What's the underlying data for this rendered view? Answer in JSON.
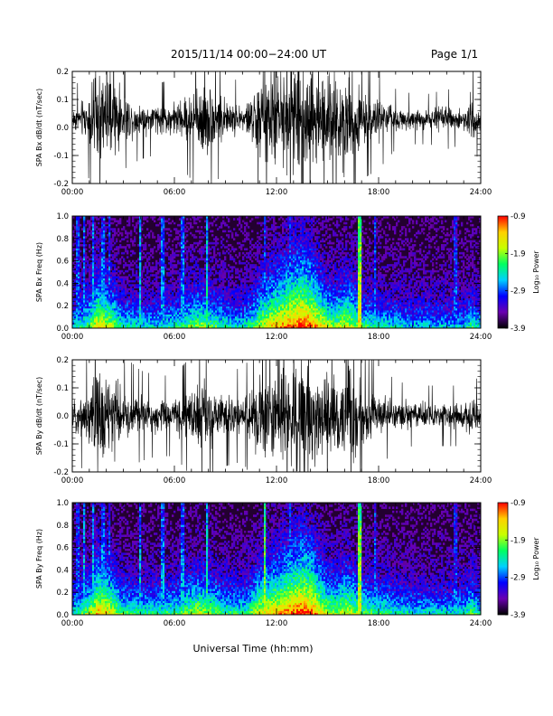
{
  "header": {
    "title": "2015/11/14  00:00−24:00 UT",
    "page": "Page 1/1"
  },
  "colors": {
    "trace": "#000000",
    "spectrogram_background": "#230030",
    "colorbar_stops": [
      "#000000",
      "#6a00b0",
      "#0000ff",
      "#00d0ff",
      "#00ff60",
      "#c8ff00",
      "#ffd000",
      "#ff0000"
    ]
  },
  "chart_data": [
    {
      "type": "line",
      "name": "bx-timeseries",
      "ylabel": "SPA Bx dB/dt (nT/sec)",
      "xlabel": "",
      "xlim": [
        0,
        24
      ],
      "ylim": [
        -0.2,
        0.2
      ],
      "x_ticks": [
        "00:00",
        "06:00",
        "12:00",
        "18:00",
        "24:00"
      ],
      "y_ticks": [
        "-0.2",
        "-0.1",
        "0.0",
        "0.1",
        "0.2"
      ],
      "y_tick_values": [
        -0.2,
        -0.1,
        0.0,
        0.1,
        0.2
      ],
      "baseline": 0.03,
      "envelope_hours": [
        0,
        1,
        1.5,
        2,
        2.5,
        3,
        4,
        5,
        6,
        7,
        7.5,
        8,
        9,
        10,
        10.5,
        11,
        12,
        12.5,
        13,
        13.5,
        14,
        15,
        15.5,
        16,
        16.5,
        17,
        18,
        19,
        20,
        21,
        22,
        23,
        23.5,
        24
      ],
      "envelope_amplitude": [
        0.05,
        0.12,
        0.25,
        0.22,
        0.2,
        0.1,
        0.08,
        0.07,
        0.08,
        0.12,
        0.2,
        0.16,
        0.09,
        0.07,
        0.11,
        0.2,
        0.24,
        0.25,
        0.28,
        0.3,
        0.3,
        0.18,
        0.2,
        0.26,
        0.25,
        0.12,
        0.1,
        0.06,
        0.05,
        0.05,
        0.06,
        0.05,
        0.12,
        0.04
      ]
    },
    {
      "type": "heatmap",
      "name": "bx-spectrogram",
      "ylabel": "SPA Bx Freq (Hz)",
      "xlabel": "",
      "xlim": [
        0,
        24
      ],
      "ylim": [
        0,
        1.0
      ],
      "x_ticks": [
        "00:00",
        "06:00",
        "12:00",
        "18:00",
        "24:00"
      ],
      "y_ticks": [
        "0.0",
        "0.2",
        "0.4",
        "0.6",
        "0.8",
        "1.0"
      ],
      "y_tick_values": [
        0.0,
        0.2,
        0.4,
        0.6,
        0.8,
        1.0
      ],
      "colorbar": {
        "min": -3.9,
        "max": -0.9,
        "ticks": [
          "-0.9",
          "-1.9",
          "-2.9",
          "-3.9"
        ],
        "tick_values": [
          -0.9,
          -1.9,
          -2.9,
          -3.9
        ],
        "label": "Log₁₀ Power"
      },
      "activity_hours": [
        0,
        1,
        1.5,
        2,
        2.5,
        3,
        4,
        5,
        6,
        7,
        7.5,
        8,
        9,
        10,
        10.5,
        11,
        12,
        12.5,
        13,
        13.5,
        14,
        15,
        15.5,
        16,
        16.5,
        17,
        18,
        19,
        20,
        21,
        22,
        23,
        23.5,
        24
      ],
      "activity_level": [
        0.3,
        0.5,
        0.7,
        0.65,
        0.55,
        0.4,
        0.35,
        0.35,
        0.4,
        0.5,
        0.55,
        0.5,
        0.4,
        0.35,
        0.45,
        0.6,
        0.75,
        0.8,
        0.85,
        0.9,
        0.85,
        0.6,
        0.55,
        0.65,
        0.6,
        0.45,
        0.4,
        0.35,
        0.3,
        0.3,
        0.3,
        0.3,
        0.45,
        0.3
      ],
      "spike_hours": [
        0.3,
        0.7,
        1.2,
        1.8,
        2.2,
        4.0,
        5.3,
        6.5,
        7.9,
        11.3,
        12.8,
        16.9,
        17.8,
        22.5
      ],
      "spike_strength": [
        0.45,
        0.5,
        0.55,
        0.5,
        0.45,
        0.55,
        0.5,
        0.5,
        0.6,
        0.45,
        0.45,
        0.95,
        0.45,
        0.4
      ]
    },
    {
      "type": "line",
      "name": "by-timeseries",
      "ylabel": "SPA By dB/dt (nT/sec)",
      "xlabel": "",
      "xlim": [
        0,
        24
      ],
      "ylim": [
        -0.2,
        0.2
      ],
      "x_ticks": [
        "00:00",
        "06:00",
        "12:00",
        "18:00",
        "24:00"
      ],
      "y_ticks": [
        "-0.2",
        "-0.1",
        "0.0",
        "0.1",
        "0.2"
      ],
      "y_tick_values": [
        -0.2,
        -0.1,
        0.0,
        0.1,
        0.2
      ],
      "baseline": 0.0,
      "envelope_hours": [
        0,
        1,
        1.5,
        2,
        2.5,
        3,
        4,
        5,
        6,
        7,
        7.5,
        8,
        9,
        10,
        10.5,
        11,
        12,
        12.5,
        13,
        13.5,
        14,
        15,
        15.5,
        16,
        16.5,
        17,
        18,
        19,
        20,
        21,
        22,
        23,
        23.5,
        24
      ],
      "envelope_amplitude": [
        0.06,
        0.14,
        0.26,
        0.22,
        0.2,
        0.12,
        0.09,
        0.08,
        0.08,
        0.12,
        0.18,
        0.14,
        0.1,
        0.09,
        0.12,
        0.2,
        0.26,
        0.26,
        0.28,
        0.3,
        0.28,
        0.2,
        0.2,
        0.24,
        0.22,
        0.14,
        0.1,
        0.07,
        0.06,
        0.06,
        0.06,
        0.06,
        0.1,
        0.05
      ]
    },
    {
      "type": "heatmap",
      "name": "by-spectrogram",
      "ylabel": "SPA By Freq (Hz)",
      "xlabel": "Universal Time (hh:mm)",
      "xlim": [
        0,
        24
      ],
      "ylim": [
        0,
        1.0
      ],
      "x_ticks": [
        "00:00",
        "06:00",
        "12:00",
        "18:00",
        "24:00"
      ],
      "y_ticks": [
        "0.0",
        "0.2",
        "0.4",
        "0.6",
        "0.8",
        "1.0"
      ],
      "y_tick_values": [
        0.0,
        0.2,
        0.4,
        0.6,
        0.8,
        1.0
      ],
      "colorbar": {
        "min": -3.9,
        "max": -0.9,
        "ticks": [
          "-0.9",
          "-1.9",
          "-2.9",
          "-3.9"
        ],
        "tick_values": [
          -0.9,
          -1.9,
          -2.9,
          -3.9
        ],
        "label": "Log₁₀ Power"
      },
      "activity_hours": [
        0,
        1,
        1.5,
        2,
        2.5,
        3,
        4,
        5,
        6,
        7,
        7.5,
        8,
        9,
        10,
        10.5,
        11,
        12,
        12.5,
        13,
        13.5,
        14,
        15,
        15.5,
        16,
        16.5,
        17,
        18,
        19,
        20,
        21,
        22,
        23,
        23.5,
        24
      ],
      "activity_level": [
        0.35,
        0.55,
        0.75,
        0.7,
        0.6,
        0.45,
        0.4,
        0.4,
        0.45,
        0.55,
        0.6,
        0.55,
        0.45,
        0.4,
        0.5,
        0.65,
        0.75,
        0.8,
        0.85,
        0.9,
        0.85,
        0.6,
        0.55,
        0.65,
        0.6,
        0.5,
        0.45,
        0.4,
        0.35,
        0.35,
        0.35,
        0.35,
        0.5,
        0.35
      ],
      "spike_hours": [
        0.3,
        0.7,
        1.2,
        1.8,
        2.2,
        4.0,
        5.3,
        6.5,
        7.9,
        11.3,
        12.8,
        16.9,
        17.8,
        22.5
      ],
      "spike_strength": [
        0.45,
        0.55,
        0.55,
        0.5,
        0.45,
        0.55,
        0.5,
        0.5,
        0.65,
        0.85,
        0.45,
        0.9,
        0.45,
        0.4
      ]
    }
  ]
}
